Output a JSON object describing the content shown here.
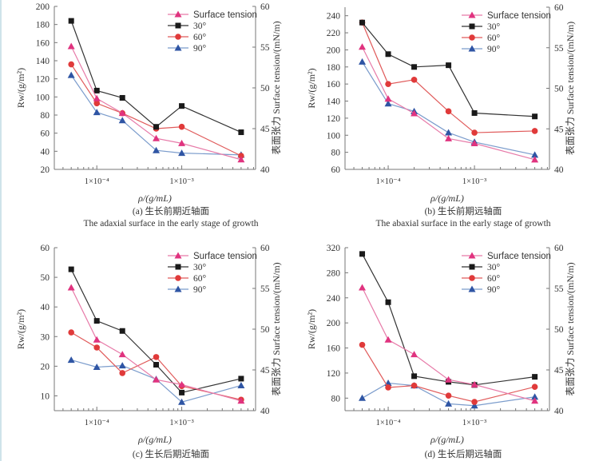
{
  "chart_data": [
    {
      "type": "line",
      "panel": "a",
      "caption_cn": "(a) 生长前期近轴面",
      "caption_en": "The adaxial surface in the early stage of growth",
      "xlabel": "ρ/(g/mL)",
      "ylabel": "Rw/(g/m²)",
      "y2label": "表面张力 Surface tension/(mN/m)",
      "xscale": "log",
      "xlim": [
        3.16e-05,
        0.0074
      ],
      "xticks": [
        {
          "value": 0.0001,
          "label": "1×10⁻⁴"
        },
        {
          "value": 0.001,
          "label": "1×10⁻³"
        }
      ],
      "ylim": [
        20,
        200
      ],
      "yticks": [
        20,
        40,
        60,
        80,
        100,
        120,
        140,
        160,
        180,
        200
      ],
      "y2lim": [
        40,
        60
      ],
      "y2ticks": [
        40,
        45,
        50,
        55,
        60
      ],
      "legend": "top-right",
      "x": [
        5e-05,
        0.0001,
        0.0002,
        0.0005,
        0.001,
        0.005
      ],
      "series": [
        {
          "name": "Surface tension",
          "axis": "right",
          "marker": "triangle",
          "color": "#e0337f",
          "line": "#e77aa8",
          "values": [
            55.1,
            48.7,
            46.9,
            43.8,
            43.2,
            41.2
          ]
        },
        {
          "name": "30°",
          "axis": "left",
          "marker": "square",
          "color": "#1a1a1a",
          "line": "#333333",
          "values": [
            184,
            107,
            99,
            67,
            90,
            61
          ]
        },
        {
          "name": "60°",
          "axis": "left",
          "marker": "circle",
          "color": "#e03a3a",
          "line": "#e05a5a",
          "values": [
            136,
            93,
            82,
            65,
            67,
            35
          ]
        },
        {
          "name": "90°",
          "axis": "left",
          "marker": "triangle",
          "color": "#2f55a4",
          "line": "#7b9ccc",
          "values": [
            124,
            83,
            74,
            41,
            38,
            36
          ]
        }
      ]
    },
    {
      "type": "line",
      "panel": "b",
      "caption_cn": "(b) 生长前期远轴面",
      "caption_en": "The abaxial surface in the early stage of growth",
      "xlabel": "ρ/(g/mL)",
      "ylabel": "Rw/(g/m²)",
      "y2label": "表面张力 Surface tension/(mN/m)",
      "xscale": "log",
      "xlim": [
        3.16e-05,
        0.0074
      ],
      "xticks": [
        {
          "value": 0.0001,
          "label": "1×10⁻⁴"
        },
        {
          "value": 0.001,
          "label": "1×10⁻³"
        }
      ],
      "ylim": [
        60,
        250
      ],
      "yticks": [
        60,
        80,
        100,
        120,
        140,
        160,
        180,
        200,
        220,
        240
      ],
      "y2lim": [
        40,
        60
      ],
      "y2ticks": [
        40,
        45,
        50,
        55,
        60
      ],
      "legend": "top-right",
      "x": [
        5e-05,
        0.0001,
        0.0002,
        0.0005,
        0.001,
        0.005
      ],
      "series": [
        {
          "name": "Surface tension",
          "axis": "right",
          "marker": "triangle",
          "color": "#e0337f",
          "line": "#e77aa8",
          "values": [
            55.1,
            48.7,
            46.9,
            43.8,
            43.2,
            41.2
          ]
        },
        {
          "name": "30°",
          "axis": "left",
          "marker": "square",
          "color": "#1a1a1a",
          "line": "#333333",
          "values": [
            232,
            195,
            180,
            182,
            126,
            122
          ]
        },
        {
          "name": "60°",
          "axis": "left",
          "marker": "circle",
          "color": "#e03a3a",
          "line": "#e05a5a",
          "values": [
            232,
            160,
            165,
            128,
            103,
            105
          ]
        },
        {
          "name": "90°",
          "axis": "left",
          "marker": "triangle",
          "color": "#2f55a4",
          "line": "#7b9ccc",
          "values": [
            186,
            137,
            128,
            103,
            92,
            77
          ]
        }
      ]
    },
    {
      "type": "line",
      "panel": "c",
      "caption_cn": "(c) 生长后期近轴面",
      "xlabel": "ρ/(g/mL)",
      "ylabel": "Rw/(g/m²)",
      "y2label": "表面张力 Surface tension/(mN/m)",
      "xscale": "log",
      "xlim": [
        3.16e-05,
        0.0074
      ],
      "xticks": [
        {
          "value": 0.0001,
          "label": "1×10⁻⁴"
        },
        {
          "value": 0.001,
          "label": "1×10⁻³"
        }
      ],
      "ylim": [
        5,
        60
      ],
      "yticks": [
        10,
        20,
        30,
        40,
        50,
        60
      ],
      "y2lim": [
        40,
        60
      ],
      "y2ticks": [
        40,
        45,
        50,
        55,
        60
      ],
      "legend": "top-right",
      "x": [
        5e-05,
        0.0001,
        0.0002,
        0.0005,
        0.001,
        0.005
      ],
      "series": [
        {
          "name": "Surface tension",
          "axis": "right",
          "marker": "triangle",
          "color": "#e0337f",
          "line": "#e77aa8",
          "values": [
            55.1,
            48.7,
            46.9,
            43.8,
            43.2,
            41.2
          ]
        },
        {
          "name": "30°",
          "axis": "left",
          "marker": "square",
          "color": "#1a1a1a",
          "line": "#333333",
          "values": [
            52.7,
            35.3,
            31.9,
            20.5,
            11.1,
            15.8
          ]
        },
        {
          "name": "60°",
          "axis": "left",
          "marker": "circle",
          "color": "#e03a3a",
          "line": "#e05a5a",
          "values": [
            31.4,
            26.3,
            17.7,
            23.1,
            13.3,
            8.7
          ]
        },
        {
          "name": "90°",
          "axis": "left",
          "marker": "triangle",
          "color": "#2f55a4",
          "line": "#7b9ccc",
          "values": [
            22.1,
            19.7,
            20.2,
            15.6,
            7.9,
            13.5
          ]
        }
      ]
    },
    {
      "type": "line",
      "panel": "d",
      "caption_cn": "(d) 生长后期远轴面",
      "xlabel": "ρ/(g/mL)",
      "ylabel": "Rw/(g/m²)",
      "y2label": "表面张力 Surface tension/(mN/m)",
      "xscale": "log",
      "xlim": [
        3.16e-05,
        0.0074
      ],
      "xticks": [
        {
          "value": 0.0001,
          "label": "1×10⁻⁴"
        },
        {
          "value": 0.001,
          "label": "1×10⁻³"
        }
      ],
      "ylim": [
        60,
        320
      ],
      "yticks": [
        80,
        120,
        160,
        200,
        240,
        280,
        320
      ],
      "y2lim": [
        40,
        60
      ],
      "y2ticks": [
        40,
        45,
        50,
        55,
        60
      ],
      "legend": "top-right",
      "x": [
        5e-05,
        0.0001,
        0.0002,
        0.0005,
        0.001,
        0.005
      ],
      "series": [
        {
          "name": "Surface tension",
          "axis": "right",
          "marker": "triangle",
          "color": "#e0337f",
          "line": "#e77aa8",
          "values": [
            55.1,
            48.7,
            46.9,
            43.8,
            43.2,
            41.2
          ]
        },
        {
          "name": "30°",
          "axis": "left",
          "marker": "square",
          "color": "#1a1a1a",
          "line": "#333333",
          "values": [
            310,
            233,
            115,
            106,
            101,
            114
          ]
        },
        {
          "name": "60°",
          "axis": "left",
          "marker": "circle",
          "color": "#e03a3a",
          "line": "#e05a5a",
          "values": [
            165,
            97,
            100,
            84,
            74,
            98
          ]
        },
        {
          "name": "90°",
          "axis": "left",
          "marker": "triangle",
          "color": "#2f55a4",
          "line": "#7b9ccc",
          "values": [
            80,
            104,
            100,
            71,
            68,
            82
          ]
        }
      ]
    }
  ]
}
